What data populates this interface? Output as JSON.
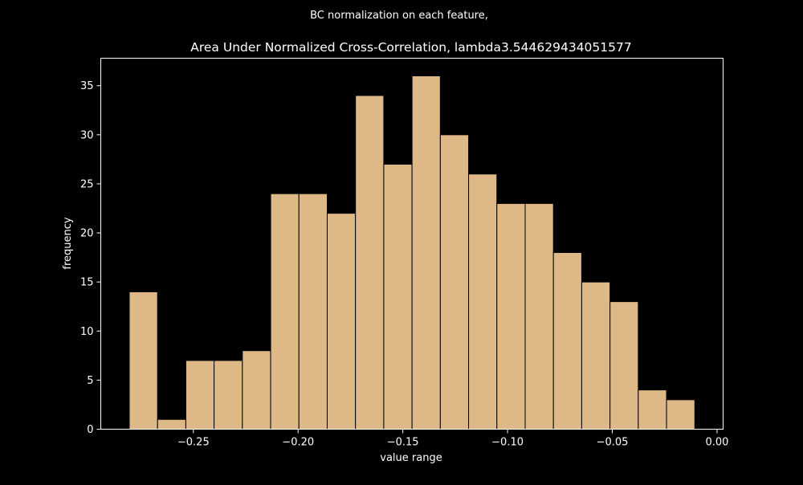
{
  "figure": {
    "suptitle": "BC normalization on each feature,",
    "background": "#000000"
  },
  "chart_data": {
    "type": "bar",
    "title": "Area Under Normalized Cross-Correlation, lambda3.544629434051577",
    "xlabel": "value range",
    "ylabel": "frequency",
    "bin_edges": [
      -0.2806,
      -0.2671,
      -0.2536,
      -0.2401,
      -0.2266,
      -0.2131,
      -0.1996,
      -0.1861,
      -0.1726,
      -0.1591,
      -0.1456,
      -0.1321,
      -0.1186,
      -0.1051,
      -0.0916,
      -0.0781,
      -0.0646,
      -0.0511,
      -0.0376,
      -0.0241,
      -0.0106
    ],
    "values": [
      14,
      1,
      7,
      7,
      8,
      24,
      24,
      22,
      34,
      27,
      36,
      30,
      26,
      23,
      23,
      18,
      15,
      13,
      4,
      3
    ],
    "xlim": [
      -0.2942,
      0.0029
    ],
    "ylim": [
      0,
      37.8
    ],
    "xticks": [
      -0.25,
      -0.2,
      -0.15,
      -0.1,
      -0.05,
      0.0
    ],
    "xtick_labels": [
      "−0.25",
      "−0.20",
      "−0.15",
      "−0.10",
      "−0.05",
      "0.00"
    ],
    "yticks": [
      0,
      5,
      10,
      15,
      20,
      25,
      30,
      35
    ],
    "ytick_labels": [
      "0",
      "5",
      "10",
      "15",
      "20",
      "25",
      "30",
      "35"
    ],
    "bar_color": "#deb887",
    "bar_edge_color": "#000000",
    "axes_color": "#ffffff",
    "grid": false,
    "legend": "none"
  }
}
